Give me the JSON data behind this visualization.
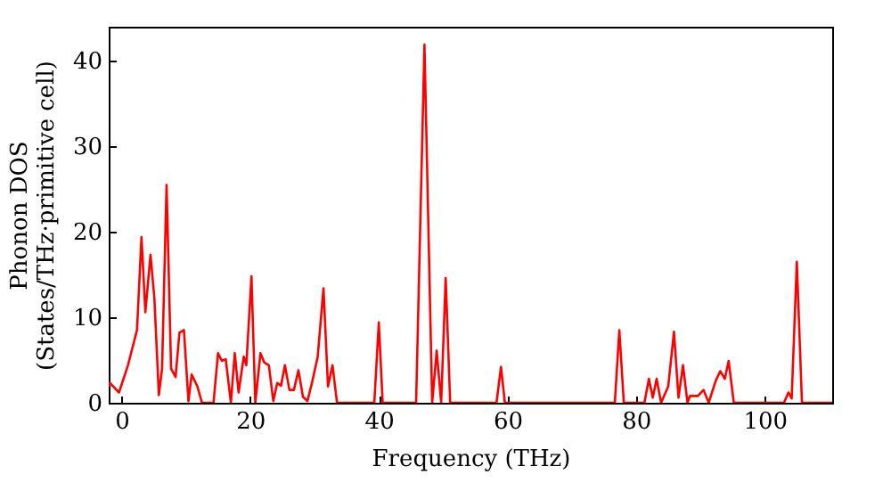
{
  "chart_data": {
    "type": "line",
    "xlabel": "Frequency (THz)",
    "ylabel": "Phonon DOS\n(States/THz·primitive cell)",
    "xlim": [
      -2,
      110.5
    ],
    "ylim": [
      0,
      44
    ],
    "xticks": [
      0,
      20,
      40,
      60,
      80,
      100
    ],
    "yticks": [
      0,
      10,
      20,
      30,
      40
    ],
    "grid": false,
    "marker": "none",
    "line_style": "solid",
    "series": [
      {
        "color": "#ff0000",
        "x": [
          -2,
          -1.8,
          -0.4,
          1.0,
          2.4,
          3.1,
          3.7,
          4.5,
          5.1,
          5.8,
          6.3,
          7.0,
          7.7,
          8.4,
          9.0,
          9.7,
          10.4,
          10.9,
          11.8,
          12.5,
          14.3,
          15.0,
          15.6,
          16.2,
          17.0,
          17.6,
          18.2,
          19.0,
          19.4,
          20.2,
          20.8,
          21.6,
          22.2,
          22.9,
          23.6,
          24.2,
          24.8,
          25.4,
          26.1,
          26.8,
          27.5,
          28.2,
          28.9,
          29.6,
          30.5,
          31.4,
          32.1,
          32.8,
          33.5,
          39.3,
          40.0,
          40.6,
          45.8,
          47.1,
          48.3,
          49.0,
          49.7,
          50.4,
          51.1,
          58.3,
          59.0,
          59.6,
          76.7,
          77.4,
          78.1,
          81.3,
          82.0,
          82.6,
          83.2,
          83.9,
          85.0,
          85.9,
          86.6,
          87.3,
          88.0,
          88.4,
          89.6,
          90.5,
          91.3,
          92.4,
          93.1,
          93.8,
          94.4,
          95.2,
          103.0,
          103.7,
          104.2,
          105.0,
          105.8,
          110.5
        ],
        "values": [
          1.9,
          2.3,
          1.2,
          4.4,
          8.5,
          19.4,
          10.6,
          17.3,
          12.3,
          0.9,
          4.0,
          25.5,
          4.0,
          3.0,
          8.2,
          8.5,
          0.2,
          3.3,
          1.9,
          0,
          0,
          5.8,
          4.9,
          5.1,
          0,
          5.8,
          1.2,
          5.4,
          4.4,
          14.8,
          0,
          5.8,
          4.7,
          4.4,
          0.2,
          2.3,
          2.0,
          4.4,
          1.5,
          1.5,
          3.8,
          0.7,
          0.2,
          2.3,
          5.4,
          13.4,
          1.9,
          4.4,
          0,
          0,
          9.4,
          0,
          0,
          41.9,
          0,
          6.1,
          0,
          14.6,
          0,
          0,
          4.2,
          0,
          0,
          8.5,
          0,
          0,
          2.8,
          0.6,
          2.8,
          0,
          1.9,
          8.3,
          0.6,
          4.4,
          0,
          0.8,
          0.8,
          1.5,
          0,
          2.6,
          3.7,
          2.8,
          4.9,
          0,
          0,
          1.2,
          0.5,
          16.5,
          0,
          0
        ]
      }
    ]
  }
}
